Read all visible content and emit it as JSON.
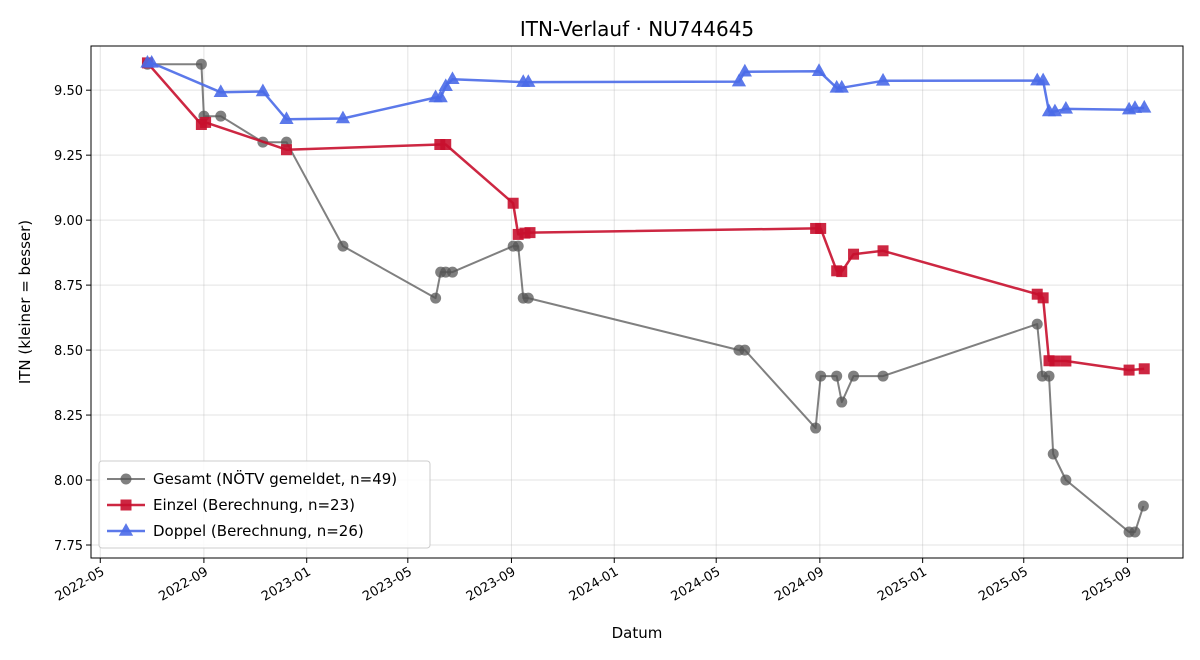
{
  "chart_data": {
    "type": "line",
    "title": "ITN-Verlauf · NU744645",
    "xlabel": "Datum",
    "ylabel": "ITN  (kleiner = besser)",
    "x_ticks": [
      "2022-05",
      "2022-09",
      "2023-01",
      "2023-05",
      "2023-09",
      "2024-01",
      "2024-05",
      "2024-09",
      "2025-01",
      "2025-05",
      "2025-09"
    ],
    "y_ticks": [
      "7.75",
      "8.00",
      "8.25",
      "8.50",
      "8.75",
      "9.00",
      "9.25",
      "9.50"
    ],
    "xlim": [
      "2022-04-20",
      "2025-11-06"
    ],
    "ylim": [
      7.7,
      9.67
    ],
    "grid": true,
    "legend_position": "lower-left",
    "series": [
      {
        "name": "Gesamt (NÖTV gemeldet, n=49)",
        "color": "#555555",
        "marker": "circle",
        "points": [
          [
            "2022-06-26",
            9.6
          ],
          [
            "2022-08-29",
            9.6
          ],
          [
            "2022-09-01",
            9.4
          ],
          [
            "2022-09-21",
            9.4
          ],
          [
            "2022-11-10",
            9.3
          ],
          [
            "2022-12-08",
            9.3
          ],
          [
            "2023-02-13",
            8.9
          ],
          [
            "2023-06-03",
            8.7
          ],
          [
            "2023-06-09",
            8.8
          ],
          [
            "2023-06-15",
            8.8
          ],
          [
            "2023-06-23",
            8.8
          ],
          [
            "2023-09-03",
            8.9
          ],
          [
            "2023-09-09",
            8.9
          ],
          [
            "2023-09-15",
            8.7
          ],
          [
            "2023-09-21",
            8.7
          ],
          [
            "2024-05-28",
            8.5
          ],
          [
            "2024-06-04",
            8.5
          ],
          [
            "2024-08-27",
            8.2
          ],
          [
            "2024-09-02",
            8.4
          ],
          [
            "2024-09-21",
            8.4
          ],
          [
            "2024-09-27",
            8.3
          ],
          [
            "2024-10-11",
            8.4
          ],
          [
            "2024-11-15",
            8.4
          ],
          [
            "2025-05-17",
            8.6
          ],
          [
            "2025-05-23",
            8.4
          ],
          [
            "2025-05-31",
            8.4
          ],
          [
            "2025-06-05",
            8.1
          ],
          [
            "2025-06-20",
            8.0
          ],
          [
            "2025-09-03",
            7.8
          ],
          [
            "2025-09-10",
            7.8
          ],
          [
            "2025-09-20",
            7.9
          ]
        ]
      },
      {
        "name": "Einzel (Berechnung, n=23)",
        "color": "#c8102e",
        "marker": "square",
        "points": [
          [
            "2022-06-26",
            9.605
          ],
          [
            "2022-08-29",
            9.368
          ],
          [
            "2022-09-03",
            9.376
          ],
          [
            "2022-12-08",
            9.271
          ],
          [
            "2023-06-08",
            9.291
          ],
          [
            "2023-06-15",
            9.291
          ],
          [
            "2023-09-03",
            9.065
          ],
          [
            "2023-09-09",
            8.945
          ],
          [
            "2023-09-17",
            8.95
          ],
          [
            "2023-09-23",
            8.952
          ],
          [
            "2024-08-27",
            8.968
          ],
          [
            "2024-09-02",
            8.968
          ],
          [
            "2024-09-21",
            8.805
          ],
          [
            "2024-09-27",
            8.802
          ],
          [
            "2024-10-11",
            8.869
          ],
          [
            "2024-11-15",
            8.882
          ],
          [
            "2025-05-17",
            8.715
          ],
          [
            "2025-05-24",
            8.701
          ],
          [
            "2025-05-31",
            8.459
          ],
          [
            "2025-06-07",
            8.458
          ],
          [
            "2025-06-20",
            8.458
          ],
          [
            "2025-09-03",
            8.423
          ],
          [
            "2025-09-21",
            8.428
          ]
        ]
      },
      {
        "name": "Doppel (Berechnung, n=26)",
        "color": "#4a6ae8",
        "marker": "triangle",
        "points": [
          [
            "2022-06-26",
            9.605
          ],
          [
            "2022-07-01",
            9.605
          ],
          [
            "2022-09-21",
            9.492
          ],
          [
            "2022-11-10",
            9.495
          ],
          [
            "2022-12-08",
            9.388
          ],
          [
            "2023-02-13",
            9.391
          ],
          [
            "2023-06-03",
            9.472
          ],
          [
            "2023-06-09",
            9.472
          ],
          [
            "2023-06-15",
            9.515
          ],
          [
            "2023-06-23",
            9.542
          ],
          [
            "2023-09-15",
            9.531
          ],
          [
            "2023-09-21",
            9.531
          ],
          [
            "2024-05-28",
            9.533
          ],
          [
            "2024-06-04",
            9.571
          ],
          [
            "2024-08-31",
            9.573
          ],
          [
            "2024-09-21",
            9.509
          ],
          [
            "2024-09-27",
            9.509
          ],
          [
            "2024-11-15",
            9.536
          ],
          [
            "2025-05-17",
            9.537
          ],
          [
            "2025-05-24",
            9.537
          ],
          [
            "2025-05-31",
            9.418
          ],
          [
            "2025-06-07",
            9.418
          ],
          [
            "2025-06-20",
            9.428
          ],
          [
            "2025-09-03",
            9.425
          ],
          [
            "2025-09-10",
            9.431
          ],
          [
            "2025-09-21",
            9.432
          ]
        ]
      }
    ]
  }
}
